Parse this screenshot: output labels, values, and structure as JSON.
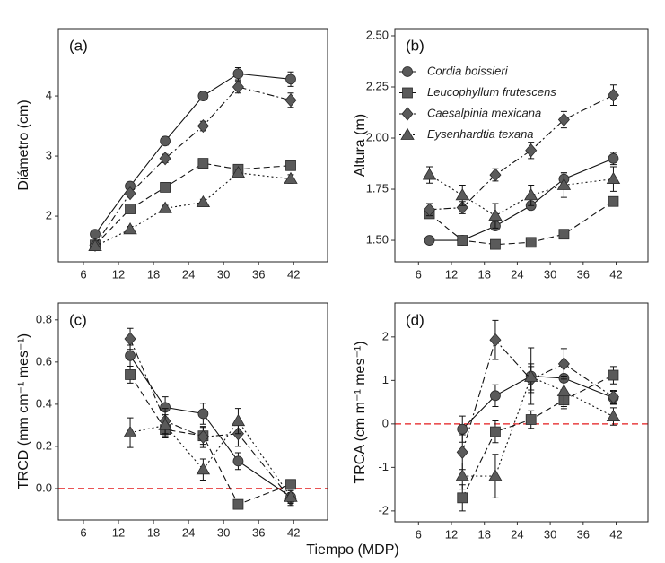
{
  "xlabel": "Tiempo (MDP)",
  "chart_data": [
    {
      "type": "line",
      "title": "(a)",
      "ylabel": "Diámetro (cm)",
      "x": [
        8,
        14,
        20,
        26.5,
        32.5,
        41.5
      ],
      "xlim": [
        1.7,
        47.8
      ],
      "xticks": [
        6,
        12,
        18,
        24,
        30,
        36,
        42
      ],
      "ylim": [
        1.24,
        5.12
      ],
      "yticks": [
        2,
        3,
        4
      ],
      "series": [
        {
          "name": "Cordia boissieri",
          "color": "#5a5a5a",
          "marker": "circle",
          "linestyle": "solid",
          "values": [
            1.7,
            2.5,
            3.25,
            4.0,
            4.37,
            4.28
          ],
          "errors": [
            0.04,
            0.05,
            0.07,
            0.07,
            0.1,
            0.12
          ]
        },
        {
          "name": "Leucophyllum frutescens",
          "color": "#5a5a5a",
          "marker": "square",
          "linestyle": "dashed",
          "values": [
            1.52,
            2.12,
            2.48,
            2.88,
            2.78,
            2.84
          ],
          "errors": [
            0.03,
            0.04,
            0.04,
            0.04,
            0.04,
            0.04
          ]
        },
        {
          "name": "Caesalpinia mexicana",
          "color": "#5a5a5a",
          "marker": "diamond",
          "linestyle": "dashdot",
          "values": [
            1.52,
            2.38,
            2.96,
            3.5,
            4.15,
            3.93
          ],
          "errors": [
            0.03,
            0.05,
            0.07,
            0.08,
            0.1,
            0.12
          ]
        },
        {
          "name": "Eysenhardtia texana",
          "color": "#5a5a5a",
          "marker": "triangle",
          "linestyle": "dotted",
          "values": [
            1.5,
            1.78,
            2.13,
            2.23,
            2.72,
            2.62
          ],
          "errors": [
            0.03,
            0.05,
            0.05,
            0.05,
            0.06,
            0.07
          ]
        }
      ]
    },
    {
      "type": "line",
      "title": "(b)",
      "ylabel": "Altura (m)",
      "legend": "upper left",
      "x": [
        8,
        14,
        20,
        26.5,
        32.5,
        41.5
      ],
      "xlim": [
        1.7,
        47.8
      ],
      "xticks": [
        6,
        12,
        18,
        24,
        30,
        36,
        42
      ],
      "ylim": [
        1.395,
        2.535
      ],
      "yticks": [
        {
          "value": 1.5,
          "label": "1.50"
        },
        {
          "value": 1.75,
          "label": "1.75"
        },
        {
          "value": 2,
          "label": "2.00"
        },
        {
          "value": 2.25,
          "label": "2.25"
        },
        {
          "value": 2.5,
          "label": "2.50"
        }
      ],
      "series": [
        {
          "name": "Cordia boissieri",
          "color": "#5a5a5a",
          "marker": "circle",
          "linestyle": "solid",
          "values": [
            1.5,
            1.5,
            1.57,
            1.67,
            1.8,
            1.9
          ],
          "errors": [
            0.01,
            0.02,
            0.02,
            0.02,
            0.03,
            0.03
          ]
        },
        {
          "name": "Leucophyllum frutescens",
          "color": "#5a5a5a",
          "marker": "square",
          "linestyle": "dashed",
          "values": [
            1.63,
            1.5,
            1.48,
            1.49,
            1.53,
            1.69
          ],
          "errors": [
            0.02,
            0.02,
            0.02,
            0.02,
            0.02,
            0.02
          ]
        },
        {
          "name": "Caesalpinia mexicana",
          "color": "#5a5a5a",
          "marker": "diamond",
          "linestyle": "dashdot",
          "values": [
            1.65,
            1.66,
            1.82,
            1.94,
            2.09,
            2.21
          ],
          "errors": [
            0.03,
            0.03,
            0.03,
            0.04,
            0.04,
            0.05
          ]
        },
        {
          "name": "Eysenhardtia texana",
          "color": "#5a5a5a",
          "marker": "triangle",
          "linestyle": "dotted",
          "values": [
            1.82,
            1.72,
            1.62,
            1.72,
            1.77,
            1.8
          ],
          "errors": [
            0.04,
            0.05,
            0.06,
            0.05,
            0.06,
            0.06
          ]
        }
      ]
    },
    {
      "type": "line",
      "title": "(c)",
      "ylabel": "TRCD (mm cm⁻¹ mes⁻¹)",
      "hline": 0,
      "hline_color": "#e41a1c",
      "x": [
        14,
        20,
        26.5,
        32.5,
        41.5
      ],
      "xlim": [
        1.7,
        47.8
      ],
      "xticks": [
        6,
        12,
        18,
        24,
        30,
        36,
        42
      ],
      "ylim": [
        -0.149,
        0.88
      ],
      "yticks": [
        {
          "value": 0,
          "label": "0.0"
        },
        {
          "value": 0.2,
          "label": "0.2"
        },
        {
          "value": 0.4,
          "label": "0.4"
        },
        {
          "value": 0.6,
          "label": "0.6"
        },
        {
          "value": 0.8,
          "label": "0.8"
        }
      ],
      "series": [
        {
          "name": "Cordia boissieri",
          "color": "#5a5a5a",
          "marker": "circle",
          "linestyle": "solid",
          "values": [
            0.63,
            0.385,
            0.355,
            0.13,
            -0.04
          ],
          "errors": [
            0.05,
            0.05,
            0.05,
            0.04,
            0.03
          ]
        },
        {
          "name": "Leucophyllum frutescens",
          "color": "#5a5a5a",
          "marker": "square",
          "linestyle": "dashed",
          "values": [
            0.54,
            0.28,
            0.25,
            -0.075,
            0.02
          ],
          "errors": [
            0.04,
            0.04,
            0.04,
            0.02,
            0.02
          ]
        },
        {
          "name": "Caesalpinia mexicana",
          "color": "#5a5a5a",
          "marker": "diamond",
          "linestyle": "dashdot",
          "values": [
            0.71,
            0.32,
            0.245,
            0.26,
            -0.05
          ],
          "errors": [
            0.05,
            0.06,
            0.05,
            0.06,
            0.03
          ]
        },
        {
          "name": "Eysenhardtia texana",
          "color": "#5a5a5a",
          "marker": "triangle",
          "linestyle": "dotted",
          "values": [
            0.265,
            0.3,
            0.09,
            0.32,
            -0.04
          ],
          "errors": [
            0.07,
            0.05,
            0.05,
            0.06,
            0.03
          ]
        }
      ]
    },
    {
      "type": "line",
      "title": "(d)",
      "ylabel": "TRCA (cm m⁻¹ mes⁻¹)",
      "hline": 0,
      "hline_color": "#e41a1c",
      "x": [
        14,
        20,
        26.5,
        32.5,
        41.5
      ],
      "xlim": [
        1.7,
        47.8
      ],
      "xticks": [
        6,
        12,
        18,
        24,
        30,
        36,
        42
      ],
      "ylim": [
        -2.25,
        2.78
      ],
      "yticks": [
        -2,
        -1,
        0,
        1,
        2
      ],
      "series": [
        {
          "name": "Cordia boissieri",
          "color": "#5a5a5a",
          "marker": "circle",
          "linestyle": "solid",
          "values": [
            -0.12,
            0.65,
            1.1,
            1.05,
            0.6
          ],
          "errors": [
            0.3,
            0.25,
            0.65,
            0.3,
            0.15
          ]
        },
        {
          "name": "Leucophyllum frutescens",
          "color": "#5a5a5a",
          "marker": "square",
          "linestyle": "dashed",
          "values": [
            -1.7,
            -0.18,
            0.1,
            0.55,
            1.12
          ],
          "errors": [
            0.3,
            0.25,
            0.2,
            0.2,
            0.2
          ]
        },
        {
          "name": "Caesalpinia mexicana",
          "color": "#5a5a5a",
          "marker": "diamond",
          "linestyle": "dashdot",
          "values": [
            -0.65,
            1.93,
            1.02,
            1.38,
            0.62
          ],
          "errors": [
            0.4,
            0.45,
            0.3,
            0.35,
            0.15
          ]
        },
        {
          "name": "Eysenhardtia texana",
          "color": "#5a5a5a",
          "marker": "triangle",
          "linestyle": "dotted",
          "values": [
            -1.2,
            -1.2,
            1.08,
            0.75,
            0.17
          ],
          "errors": [
            0.3,
            0.5,
            0.3,
            0.35,
            0.2
          ]
        }
      ]
    }
  ]
}
